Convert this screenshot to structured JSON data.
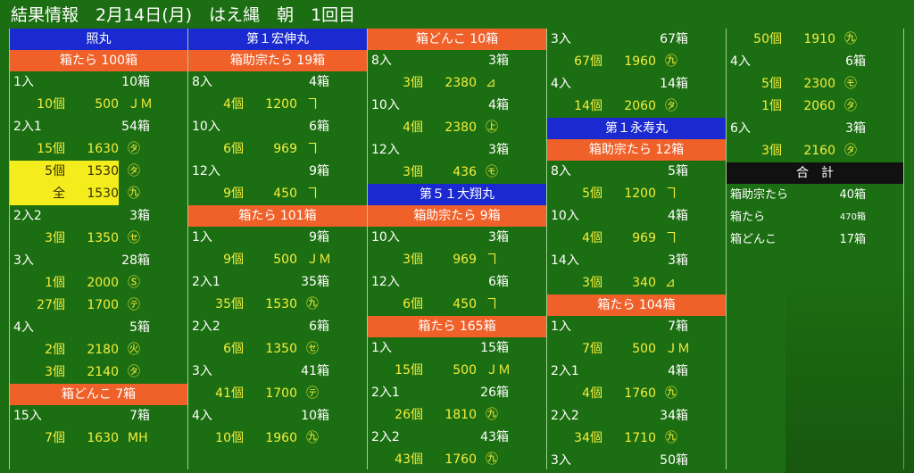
{
  "header": {
    "title": "結果情報　2月14日(月)　はえ縄　朝　1回目"
  },
  "columns": [
    {
      "sections": [
        {
          "kind": "ship",
          "label": "照丸"
        },
        {
          "kind": "fish",
          "label": "箱たら 100箱"
        },
        {
          "kind": "row",
          "a": "1入",
          "b": "10箱"
        },
        {
          "kind": "detail",
          "q": "10個",
          "p": "500",
          "m": "ＪＭ"
        },
        {
          "kind": "row",
          "a": "2入1",
          "b": "54箱"
        },
        {
          "kind": "detail",
          "q": "15個",
          "p": "1630",
          "m": "㋟"
        },
        {
          "kind": "detail",
          "q": "5個",
          "p": "1530",
          "m": "㋟",
          "hl": true
        },
        {
          "kind": "detail",
          "q": "全",
          "p": "1530",
          "m": "㊈",
          "hl": true
        },
        {
          "kind": "row",
          "a": "2入2",
          "b": "3箱"
        },
        {
          "kind": "detail",
          "q": "3個",
          "p": "1350",
          "m": "㋝"
        },
        {
          "kind": "row",
          "a": "3入",
          "b": "28箱"
        },
        {
          "kind": "detail",
          "q": "1個",
          "p": "2000",
          "m": "Ⓢ"
        },
        {
          "kind": "detail",
          "q": "27個",
          "p": "1700",
          "m": "㋢"
        },
        {
          "kind": "row",
          "a": "4入",
          "b": "5箱"
        },
        {
          "kind": "detail",
          "q": "2個",
          "p": "2180",
          "m": "㊋"
        },
        {
          "kind": "detail",
          "q": "3個",
          "p": "2140",
          "m": "㋟"
        },
        {
          "kind": "fish",
          "label": "箱どんこ 7箱"
        },
        {
          "kind": "row",
          "a": "15入",
          "b": "7箱"
        },
        {
          "kind": "detail",
          "q": "7個",
          "p": "1630",
          "m": "МН"
        }
      ]
    },
    {
      "sections": [
        {
          "kind": "ship",
          "label": "第１宏伸丸"
        },
        {
          "kind": "fish",
          "label": "箱助宗たら 19箱"
        },
        {
          "kind": "row",
          "a": "8入",
          "b": "4箱"
        },
        {
          "kind": "detail",
          "q": "4個",
          "p": "1200",
          "m": "ヿ"
        },
        {
          "kind": "row",
          "a": "10入",
          "b": "6箱"
        },
        {
          "kind": "detail",
          "q": "6個",
          "p": "969",
          "m": "ヿ"
        },
        {
          "kind": "row",
          "a": "12入",
          "b": "9箱"
        },
        {
          "kind": "detail",
          "q": "9個",
          "p": "450",
          "m": "ヿ"
        },
        {
          "kind": "fish",
          "label": "箱たら 101箱"
        },
        {
          "kind": "row",
          "a": "1入",
          "b": "9箱"
        },
        {
          "kind": "detail",
          "q": "9個",
          "p": "500",
          "m": "ＪＭ"
        },
        {
          "kind": "row",
          "a": "2入1",
          "b": "35箱"
        },
        {
          "kind": "detail",
          "q": "35個",
          "p": "1530",
          "m": "㊈"
        },
        {
          "kind": "row",
          "a": "2入2",
          "b": "6箱"
        },
        {
          "kind": "detail",
          "q": "6個",
          "p": "1350",
          "m": "㋝"
        },
        {
          "kind": "row",
          "a": "3入",
          "b": "41箱"
        },
        {
          "kind": "detail",
          "q": "41個",
          "p": "1700",
          "m": "㋢"
        },
        {
          "kind": "row",
          "a": "4入",
          "b": "10箱"
        },
        {
          "kind": "detail",
          "q": "10個",
          "p": "1960",
          "m": "㊈"
        }
      ]
    },
    {
      "sections": [
        {
          "kind": "fish",
          "label": "箱どんこ 10箱"
        },
        {
          "kind": "row",
          "a": "8入",
          "b": "3箱"
        },
        {
          "kind": "detail",
          "q": "3個",
          "p": "2380",
          "m": "⊿"
        },
        {
          "kind": "row",
          "a": "10入",
          "b": "4箱"
        },
        {
          "kind": "detail",
          "q": "4個",
          "p": "2380",
          "m": "㊤"
        },
        {
          "kind": "row",
          "a": "12入",
          "b": "3箱"
        },
        {
          "kind": "detail",
          "q": "3個",
          "p": "436",
          "m": "㋲"
        },
        {
          "kind": "ship",
          "label": "第５１大翔丸"
        },
        {
          "kind": "fish",
          "label": "箱助宗たら 9箱"
        },
        {
          "kind": "row",
          "a": "10入",
          "b": "3箱"
        },
        {
          "kind": "detail",
          "q": "3個",
          "p": "969",
          "m": "ヿ"
        },
        {
          "kind": "row",
          "a": "12入",
          "b": "6箱"
        },
        {
          "kind": "detail",
          "q": "6個",
          "p": "450",
          "m": "ヿ"
        },
        {
          "kind": "fish",
          "label": "箱たら 165箱"
        },
        {
          "kind": "row",
          "a": "1入",
          "b": "15箱"
        },
        {
          "kind": "detail",
          "q": "15個",
          "p": "500",
          "m": "ＪＭ"
        },
        {
          "kind": "row",
          "a": "2入1",
          "b": "26箱"
        },
        {
          "kind": "detail",
          "q": "26個",
          "p": "1810",
          "m": "㊈"
        },
        {
          "kind": "row",
          "a": "2入2",
          "b": "43箱"
        },
        {
          "kind": "detail",
          "q": "43個",
          "p": "1760",
          "m": "㊈"
        }
      ]
    },
    {
      "sections": [
        {
          "kind": "row",
          "a": "3入",
          "b": "67箱"
        },
        {
          "kind": "detail",
          "q": "67個",
          "p": "1960",
          "m": "㊈"
        },
        {
          "kind": "row",
          "a": "4入",
          "b": "14箱"
        },
        {
          "kind": "detail",
          "q": "14個",
          "p": "2060",
          "m": "㋟"
        },
        {
          "kind": "ship",
          "label": "第１永寿丸"
        },
        {
          "kind": "fish",
          "label": "箱助宗たら 12箱"
        },
        {
          "kind": "row",
          "a": "8入",
          "b": "5箱"
        },
        {
          "kind": "detail",
          "q": "5個",
          "p": "1200",
          "m": "ヿ"
        },
        {
          "kind": "row",
          "a": "10入",
          "b": "4箱"
        },
        {
          "kind": "detail",
          "q": "4個",
          "p": "969",
          "m": "ヿ"
        },
        {
          "kind": "row",
          "a": "14入",
          "b": "3箱"
        },
        {
          "kind": "detail",
          "q": "3個",
          "p": "340",
          "m": "⊿"
        },
        {
          "kind": "fish",
          "label": "箱たら 104箱"
        },
        {
          "kind": "row",
          "a": "1入",
          "b": "7箱"
        },
        {
          "kind": "detail",
          "q": "7個",
          "p": "500",
          "m": "ＪＭ"
        },
        {
          "kind": "row",
          "a": "2入1",
          "b": "4箱"
        },
        {
          "kind": "detail",
          "q": "4個",
          "p": "1760",
          "m": "㊈"
        },
        {
          "kind": "row",
          "a": "2入2",
          "b": "34箱"
        },
        {
          "kind": "detail",
          "q": "34個",
          "p": "1710",
          "m": "㊈"
        },
        {
          "kind": "row",
          "a": "3入",
          "b": "50箱"
        }
      ]
    },
    {
      "sections": [
        {
          "kind": "detail",
          "q": "50個",
          "p": "1910",
          "m": "㊈"
        },
        {
          "kind": "row",
          "a": "4入",
          "b": "6箱"
        },
        {
          "kind": "detail",
          "q": "5個",
          "p": "2300",
          "m": "㋲"
        },
        {
          "kind": "detail",
          "q": "1個",
          "p": "2060",
          "m": "㋟"
        },
        {
          "kind": "row",
          "a": "6入",
          "b": "3箱"
        },
        {
          "kind": "detail",
          "q": "3個",
          "p": "2160",
          "m": "㋟"
        },
        {
          "kind": "total",
          "label": "合　計"
        },
        {
          "kind": "sum",
          "a": "箱助宗たら",
          "b": "40箱"
        },
        {
          "kind": "sum",
          "a": "箱たら",
          "b": "470箱",
          "small": true
        },
        {
          "kind": "sum",
          "a": "箱どんこ",
          "b": "17箱"
        }
      ]
    }
  ]
}
